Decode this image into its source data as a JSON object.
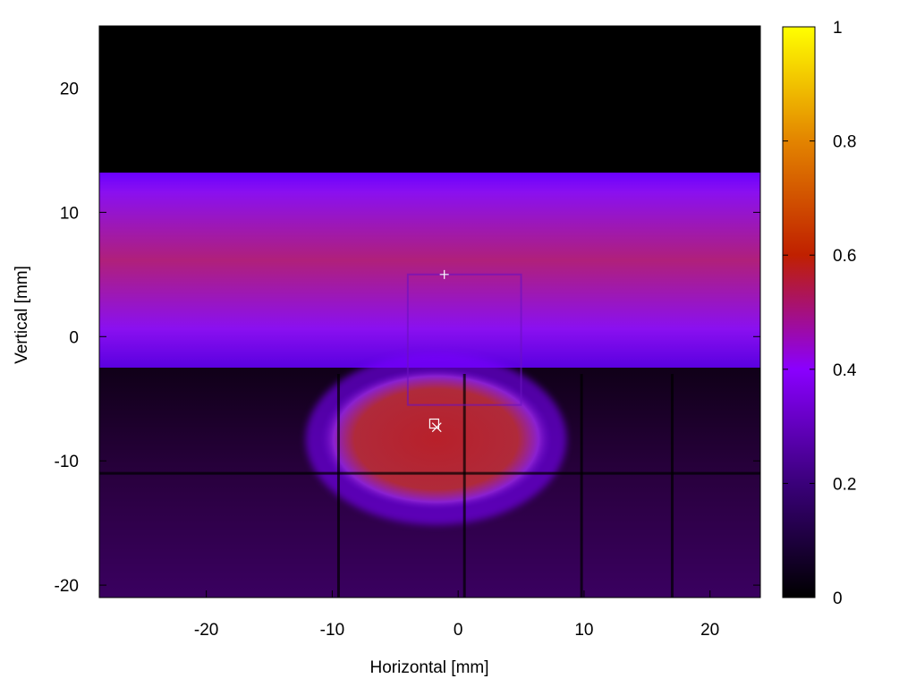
{
  "chart_data": {
    "type": "heatmap",
    "title": "",
    "xlabel": "Horizontal [mm]",
    "ylabel": "Vertical [mm]",
    "xlim": [
      -28.5,
      24.0
    ],
    "ylim": [
      -21.0,
      25.0
    ],
    "x_ticks": [
      -20,
      -10,
      0,
      10,
      20
    ],
    "y_ticks": [
      -20,
      -10,
      0,
      10,
      20
    ],
    "colorbar": {
      "range": [
        0,
        1
      ],
      "ticks": [
        0,
        0.2,
        0.4,
        0.6,
        0.8,
        1
      ],
      "tick_labels": [
        "0",
        "0.2",
        "0.4",
        "0.6",
        "0.8",
        "1"
      ],
      "colormap": "black-purple-red-orange-yellow",
      "stops": [
        "#000000",
        "#3a007a",
        "#8a00ff",
        "#c02000",
        "#e38400",
        "#ffff00"
      ]
    },
    "regions": [
      {
        "name": "upper band",
        "x": [
          -28.5,
          24.0
        ],
        "y": [
          -2.5,
          13.2
        ],
        "value": 0.34
      },
      {
        "name": "upper band core",
        "x": [
          -28.5,
          24.0
        ],
        "y": [
          2,
          9
        ],
        "value": 0.42
      },
      {
        "name": "lower background",
        "x": [
          -28.5,
          24.0
        ],
        "y": [
          -21.0,
          -2.5
        ],
        "value": 0.1
      },
      {
        "name": "central ellipse",
        "x": [
          -11,
          7.5
        ],
        "y": [
          -14,
          -2.5
        ],
        "value": 0.47
      }
    ],
    "markers": [
      {
        "symbol": "+",
        "x": -1.1,
        "y": 5.0
      },
      {
        "symbol": "square",
        "x": -1.9,
        "y": -7.0
      },
      {
        "symbol": "x",
        "x": -1.7,
        "y": -7.3
      }
    ],
    "grid": false
  }
}
